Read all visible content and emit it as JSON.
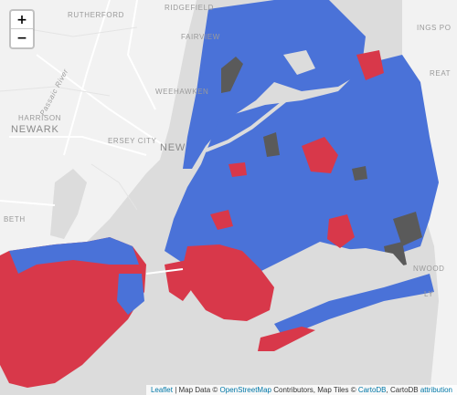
{
  "map": {
    "places": {
      "rutherford": "RUTHERFORD",
      "ridgefield": "RIDGEFIELD",
      "fairview": "FAIRVIEW",
      "weehawken": "WEEHAWKEN",
      "harrison": "HARRISON",
      "newark": "NEWARK",
      "jersey_city": "ERSEY CITY",
      "new_york": "NEW",
      "kings_point": "INGS PO",
      "great_neck": "REAT",
      "bayonne": "BETH",
      "inwood": "NWOOD",
      "passaic_river": "Passaic River",
      "ly": "LY"
    },
    "colors": {
      "blue": "#4a72d8",
      "red": "#d8384a",
      "gray": "#5a5a5a",
      "water": "#dcdcdc",
      "land": "#f2f2f2"
    }
  },
  "controls": {
    "zoom_in": "+",
    "zoom_out": "−"
  },
  "attribution": {
    "leaflet": "Leaflet",
    "sep1": " | Map Data © ",
    "osm": "OpenStreetMap",
    "sep2": " Contributors, Map Tiles © ",
    "cartodb": "CartoDB",
    "sep3": ", CartoDB ",
    "attribution_link": "attribution"
  }
}
